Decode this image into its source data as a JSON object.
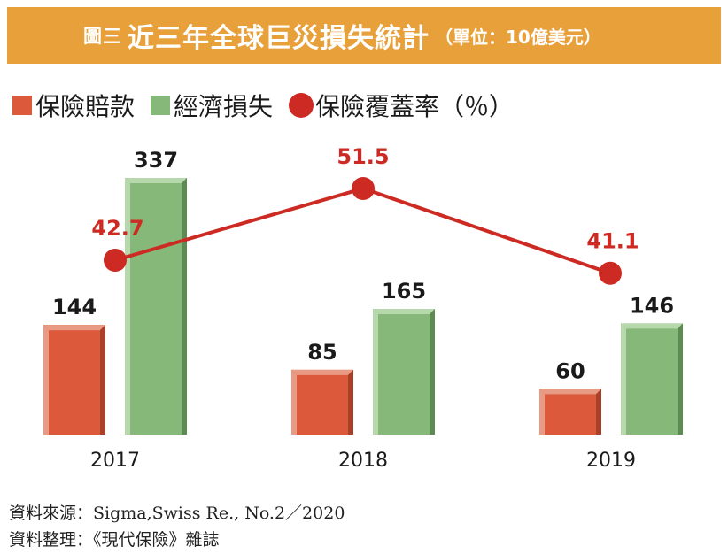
{
  "header": {
    "fig_label": "圖三",
    "title": "近三年全球巨災損失統計",
    "unit": "（單位：10億美元）"
  },
  "legend": {
    "items": [
      {
        "label": "保險賠款",
        "color": "#dc5a3b"
      },
      {
        "label": "經濟損失",
        "color": "#86b979"
      },
      {
        "label": "保險覆蓋率（％）",
        "color": "#cc2a22"
      }
    ]
  },
  "chart_data": {
    "type": "bar",
    "categories": [
      "2017",
      "2018",
      "2019"
    ],
    "series": [
      {
        "name": "保險賠款",
        "values": [
          144,
          85,
          60
        ],
        "color": "#dc5a3b"
      },
      {
        "name": "經濟損失",
        "values": [
          337,
          165,
          146
        ],
        "color": "#86b979"
      }
    ],
    "line_series": {
      "name": "保險覆蓋率（％）",
      "values": [
        42.7,
        51.5,
        41.1
      ],
      "color": "#cc2a22"
    },
    "title": "近三年全球巨災損失統計",
    "ylabel": "",
    "xlabel": "",
    "ylim": [
      0,
      337
    ],
    "grid": false,
    "legend_position": "top-left"
  },
  "footer": {
    "source": "資料來源：Sigma,Swiss Re., No.2／2020",
    "compiled": "資料整理：《現代保險》雜誌"
  }
}
